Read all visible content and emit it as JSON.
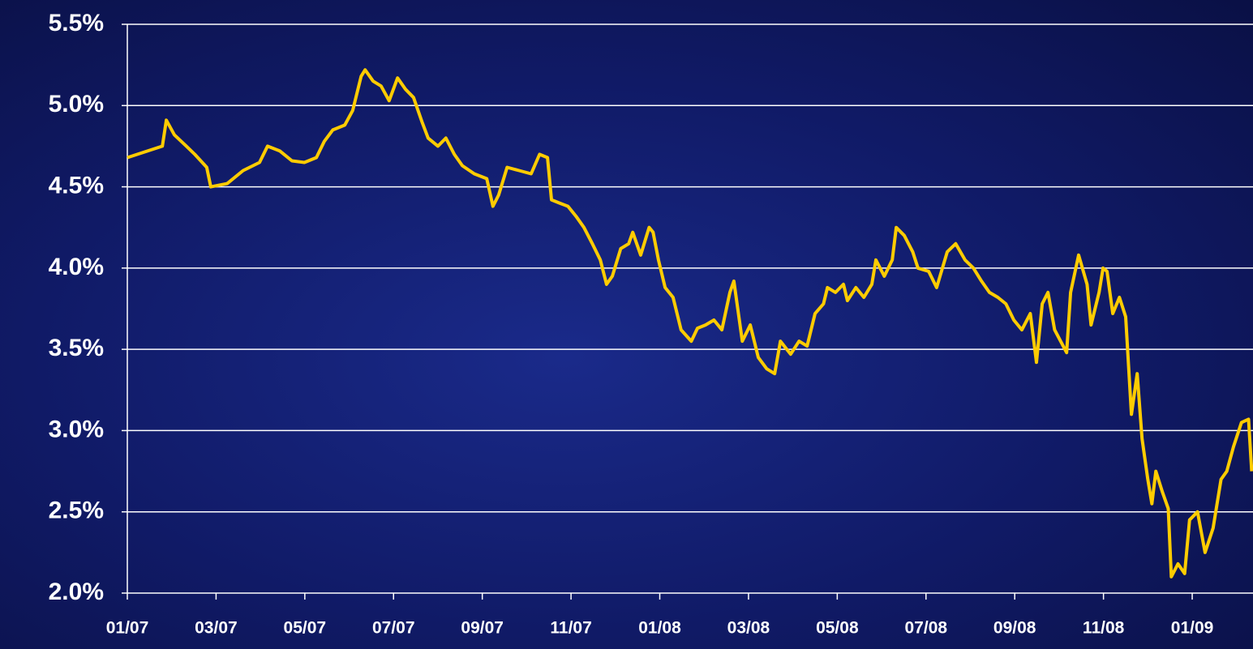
{
  "chart_data": {
    "type": "line",
    "color": "#ffcc00",
    "grid": true,
    "xlim": [
      0,
      25.37
    ],
    "xticks": [
      {
        "value": 0,
        "label": "01/07"
      },
      {
        "value": 2,
        "label": "03/07"
      },
      {
        "value": 4,
        "label": "05/07"
      },
      {
        "value": 6,
        "label": "07/07"
      },
      {
        "value": 8,
        "label": "09/07"
      },
      {
        "value": 10,
        "label": "11/07"
      },
      {
        "value": 12,
        "label": "01/08"
      },
      {
        "value": 14,
        "label": "03/08"
      },
      {
        "value": 16,
        "label": "05/08"
      },
      {
        "value": 18,
        "label": "07/08"
      },
      {
        "value": 20,
        "label": "09/08"
      },
      {
        "value": 22,
        "label": "11/08"
      },
      {
        "value": 24,
        "label": "01/09"
      }
    ],
    "ylim": [
      2.0,
      5.5
    ],
    "yticks": [
      {
        "value": 2.0,
        "label": "2.0%"
      },
      {
        "value": 2.5,
        "label": "2.5%"
      },
      {
        "value": 3.0,
        "label": "3.0%"
      },
      {
        "value": 3.5,
        "label": "3.5%"
      },
      {
        "value": 4.0,
        "label": "4.0%"
      },
      {
        "value": 4.5,
        "label": "4.5%"
      },
      {
        "value": 5.0,
        "label": "5.0%"
      },
      {
        "value": 5.5,
        "label": "5.5%"
      }
    ],
    "x": [
      0,
      0.79,
      0.88,
      1.06,
      1.33,
      1.52,
      1.79,
      1.88,
      2.25,
      2.61,
      2.98,
      3.16,
      3.44,
      3.71,
      3.99,
      4.26,
      4.44,
      4.63,
      4.9,
      5.08,
      5.27,
      5.36,
      5.54,
      5.72,
      5.9,
      6.09,
      6.27,
      6.45,
      6.64,
      6.78,
      7.0,
      7.18,
      7.37,
      7.55,
      7.82,
      8.1,
      8.24,
      8.37,
      8.56,
      8.83,
      9.1,
      9.29,
      9.47,
      9.56,
      9.74,
      9.93,
      10.11,
      10.29,
      10.48,
      10.66,
      10.8,
      10.93,
      11.12,
      11.3,
      11.39,
      11.57,
      11.76,
      11.85,
      11.97,
      12.12,
      12.3,
      12.48,
      12.71,
      12.85,
      13.03,
      13.22,
      13.4,
      13.58,
      13.67,
      13.86,
      14.04,
      14.22,
      14.41,
      14.59,
      14.72,
      14.95,
      15.14,
      15.32,
      15.5,
      15.69,
      15.78,
      15.96,
      16.14,
      16.23,
      16.42,
      16.6,
      16.78,
      16.87,
      17.06,
      17.24,
      17.33,
      17.51,
      17.7,
      17.82,
      18.06,
      18.24,
      18.48,
      18.67,
      18.88,
      19.07,
      19.25,
      19.43,
      19.62,
      19.8,
      19.98,
      20.16,
      20.35,
      20.49,
      20.62,
      20.75,
      20.9,
      21.17,
      21.26,
      21.44,
      21.63,
      21.72,
      21.9,
      21.99,
      22.08,
      22.21,
      22.36,
      22.5,
      22.63,
      22.76,
      22.87,
      23.0,
      23.09,
      23.18,
      23.33,
      23.46,
      23.53,
      23.68,
      23.83,
      23.94,
      24.12,
      24.29,
      24.47,
      24.65,
      24.78,
      24.93,
      25.11,
      25.27,
      25.34
    ],
    "values": [
      4.68,
      4.75,
      4.91,
      4.82,
      4.75,
      4.7,
      4.62,
      4.5,
      4.52,
      4.6,
      4.65,
      4.75,
      4.72,
      4.66,
      4.65,
      4.68,
      4.78,
      4.85,
      4.88,
      4.97,
      5.18,
      5.22,
      5.15,
      5.12,
      5.03,
      5.17,
      5.1,
      5.05,
      4.9,
      4.8,
      4.75,
      4.8,
      4.7,
      4.63,
      4.58,
      4.55,
      4.38,
      4.45,
      4.62,
      4.6,
      4.58,
      4.7,
      4.68,
      4.42,
      4.4,
      4.38,
      4.32,
      4.25,
      4.15,
      4.05,
      3.9,
      3.95,
      4.12,
      4.15,
      4.22,
      4.08,
      4.25,
      4.22,
      4.05,
      3.88,
      3.82,
      3.62,
      3.55,
      3.63,
      3.65,
      3.68,
      3.62,
      3.85,
      3.92,
      3.55,
      3.65,
      3.45,
      3.38,
      3.35,
      3.55,
      3.47,
      3.55,
      3.52,
      3.72,
      3.78,
      3.88,
      3.85,
      3.9,
      3.8,
      3.88,
      3.82,
      3.9,
      4.05,
      3.95,
      4.05,
      4.25,
      4.2,
      4.1,
      4.0,
      3.98,
      3.88,
      4.1,
      4.15,
      4.05,
      4.0,
      3.92,
      3.85,
      3.82,
      3.78,
      3.68,
      3.62,
      3.72,
      3.42,
      3.78,
      3.85,
      3.62,
      3.48,
      3.85,
      4.08,
      3.9,
      3.65,
      3.85,
      4.0,
      3.98,
      3.72,
      3.82,
      3.7,
      3.1,
      3.35,
      2.95,
      2.7,
      2.55,
      2.75,
      2.62,
      2.52,
      2.1,
      2.18,
      2.12,
      2.45,
      2.5,
      2.25,
      2.4,
      2.7,
      2.75,
      2.9,
      3.05,
      3.07,
      2.75
    ]
  }
}
